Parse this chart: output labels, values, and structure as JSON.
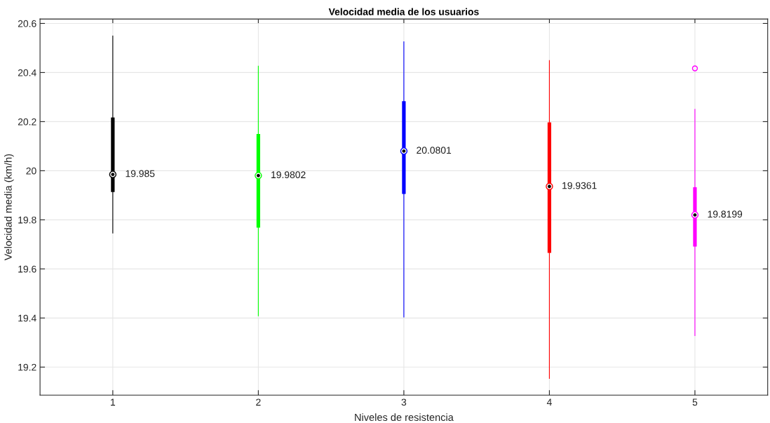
{
  "chart_data": {
    "type": "box",
    "title": "Velocidad media de los usuarios",
    "xlabel": "Niveles de resistencia",
    "ylabel": "Velocidad media (km/h)",
    "categories": [
      "1",
      "2",
      "3",
      "4",
      "5"
    ],
    "colors": [
      "#000000",
      "#00ff00",
      "#0000ff",
      "#ff0000",
      "#ff00ff"
    ],
    "boxes": [
      {
        "low": 19.746,
        "q1": 19.913,
        "median": 19.985,
        "q3": 20.217,
        "high": 20.549
      },
      {
        "low": 19.409,
        "q1": 19.768,
        "median": 19.9802,
        "q3": 20.15,
        "high": 20.426
      },
      {
        "low": 19.404,
        "q1": 19.905,
        "median": 20.0801,
        "q3": 20.283,
        "high": 20.525
      },
      {
        "low": 19.154,
        "q1": 19.665,
        "median": 19.9361,
        "q3": 20.197,
        "high": 20.449
      },
      {
        "low": 19.328,
        "q1": 19.691,
        "median": 19.8199,
        "q3": 19.933,
        "high": 20.25,
        "outliers": [
          20.417
        ]
      }
    ],
    "annotations": [
      "19.985",
      "19.9802",
      "20.0801",
      "19.9361",
      "19.8199"
    ],
    "ylim": [
      19.086,
      20.618
    ],
    "yticks": [
      19.2,
      19.4,
      19.6,
      19.8,
      20,
      20.2,
      20.4,
      20.6
    ],
    "grid": true
  }
}
